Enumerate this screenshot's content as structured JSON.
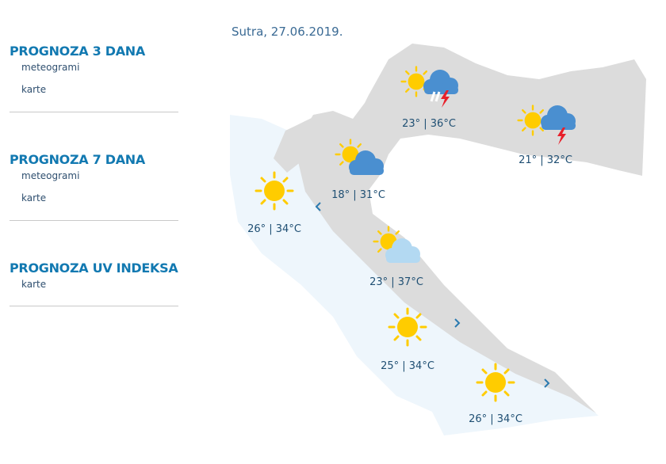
{
  "sidebar": {
    "sections": [
      {
        "title": "PROGNOZA 3 DANA",
        "links": [
          "meteogrami",
          "karte"
        ]
      },
      {
        "title": "PROGNOZA 7 DANA",
        "links": [
          "meteogrami",
          "karte"
        ]
      },
      {
        "title": "PROGNOZA UV INDEKSA",
        "links": [
          "karte"
        ]
      }
    ]
  },
  "map": {
    "date": "Sutra, 27.06.2019.",
    "colors": {
      "sun": "#ffcc00",
      "cloud": "#4a8fd0",
      "lightning": "#e8202a",
      "light_cloud": "#b3d9f2",
      "land": "#dcdcdc",
      "sea": "#eef6fc"
    },
    "stations": [
      {
        "icon": "sun-cloud-rain-lightning",
        "temp": "23° | 36°C"
      },
      {
        "icon": "sun-cloud-lightning",
        "temp": "21° | 32°C"
      },
      {
        "icon": "sun-cloud",
        "temp": "18° | 31°C"
      },
      {
        "icon": "sun",
        "temp": "26° | 34°C"
      },
      {
        "icon": "sun-light-cloud",
        "temp": "23° | 37°C"
      },
      {
        "icon": "sun",
        "temp": "25° | 34°C"
      },
      {
        "icon": "sun",
        "temp": "26° | 34°C"
      }
    ]
  }
}
